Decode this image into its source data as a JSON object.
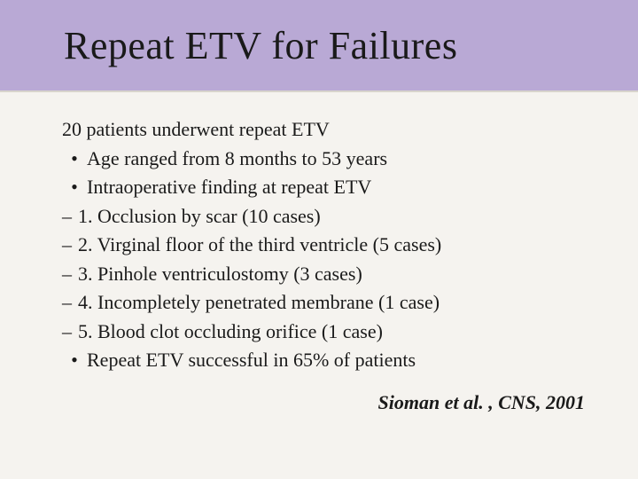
{
  "header": {
    "title": "Repeat ETV for Failures",
    "band_color": "#b9a9d5",
    "title_fontsize": 44,
    "title_color": "#1a1a1a"
  },
  "body": {
    "background_color": "#f5f3ef",
    "text_color": "#1a1a1a",
    "fontsize": 22,
    "intro": "20 patients underwent repeat ETV",
    "bullets_top": [
      "Age ranged from 8 months to 53 years",
      "Intraoperative finding at repeat ETV"
    ],
    "findings": [
      "1. Occlusion by scar (10 cases)",
      "2. Virginal floor of the third ventricle (5 cases)",
      "3. Pinhole ventriculostomy (3 cases)",
      "4. Incompletely penetrated membrane (1 case)",
      "5. Blood clot occluding orifice (1 case)"
    ],
    "bullets_bottom": [
      "Repeat ETV successful in 65% of patients"
    ]
  },
  "citation": "Sioman et al. , CNS, 2001"
}
